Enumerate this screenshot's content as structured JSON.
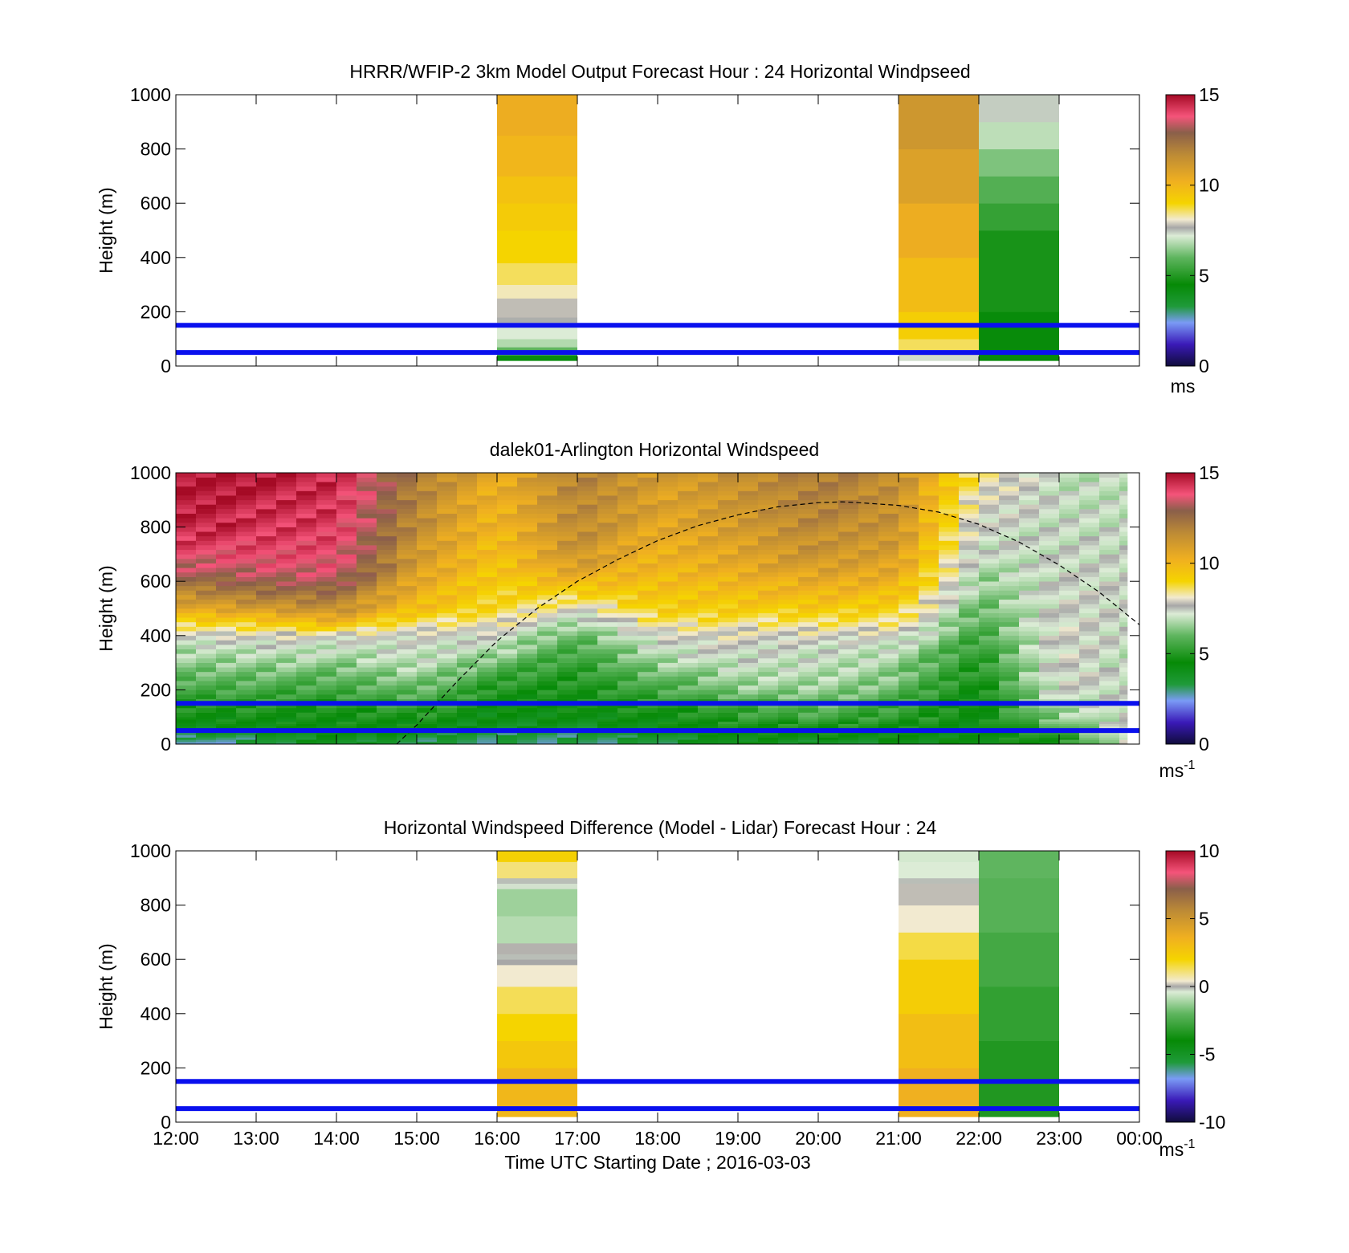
{
  "figure": {
    "xlabel": "Time UTC  Starting Date ; 2016-03-03",
    "x_ticks": [
      "12:00",
      "13:00",
      "14:00",
      "15:00",
      "16:00",
      "17:00",
      "18:00",
      "19:00",
      "20:00",
      "21:00",
      "22:00",
      "23:00",
      "00:00"
    ],
    "line_color": "#0a10ee"
  },
  "chart_data": [
    {
      "type": "heatmap",
      "title": "HRRR/WFIP-2 3km Model Output   Forecast Hour : 24 Horizontal Windpseed",
      "ylabel": "Height (m)",
      "xlim": [
        12,
        24
      ],
      "ylim": [
        0,
        1000
      ],
      "y_ticks": [
        "0",
        "200",
        "400",
        "600",
        "800",
        "1000"
      ],
      "colorbar": {
        "min": 0,
        "max": 15,
        "ticks": [
          "0",
          "5",
          "10",
          "15"
        ],
        "unit": "ms",
        "unit_sup": ""
      },
      "horizontal_lines_m": [
        50,
        150
      ],
      "columns": [
        {
          "t_start": 16,
          "t_end": 17,
          "profile": [
            {
              "z0": 20,
              "z1": 40,
              "v": 4.3
            },
            {
              "z0": 40,
              "z1": 70,
              "v": 6.0
            },
            {
              "z0": 70,
              "z1": 100,
              "v": 6.8
            },
            {
              "z0": 100,
              "z1": 160,
              "v": 7.2
            },
            {
              "z0": 160,
              "z1": 180,
              "v": 7.6
            },
            {
              "z0": 180,
              "z1": 250,
              "v": 7.8
            },
            {
              "z0": 250,
              "z1": 300,
              "v": 8.2
            },
            {
              "z0": 300,
              "z1": 380,
              "v": 8.6
            },
            {
              "z0": 380,
              "z1": 500,
              "v": 9.0
            },
            {
              "z0": 500,
              "z1": 600,
              "v": 9.3
            },
            {
              "z0": 600,
              "z1": 700,
              "v": 9.6
            },
            {
              "z0": 700,
              "z1": 850,
              "v": 10.0
            },
            {
              "z0": 850,
              "z1": 1000,
              "v": 10.3
            }
          ]
        },
        {
          "t_start": 21,
          "t_end": 22,
          "profile": [
            {
              "z0": 20,
              "z1": 40,
              "v": 7.3
            },
            {
              "z0": 40,
              "z1": 60,
              "v": 7.9
            },
            {
              "z0": 60,
              "z1": 100,
              "v": 8.6
            },
            {
              "z0": 100,
              "z1": 200,
              "v": 9.2
            },
            {
              "z0": 200,
              "z1": 400,
              "v": 9.8
            },
            {
              "z0": 400,
              "z1": 600,
              "v": 10.3
            },
            {
              "z0": 600,
              "z1": 800,
              "v": 10.8
            },
            {
              "z0": 800,
              "z1": 1000,
              "v": 11.2
            }
          ]
        },
        {
          "t_start": 22,
          "t_end": 23,
          "profile": [
            {
              "z0": 20,
              "z1": 200,
              "v": 4.4
            },
            {
              "z0": 200,
              "z1": 500,
              "v": 4.8
            },
            {
              "z0": 500,
              "z1": 600,
              "v": 5.3
            },
            {
              "z0": 600,
              "z1": 700,
              "v": 5.8
            },
            {
              "z0": 700,
              "z1": 800,
              "v": 6.3
            },
            {
              "z0": 800,
              "z1": 900,
              "v": 6.9
            },
            {
              "z0": 900,
              "z1": 1000,
              "v": 7.4
            }
          ]
        }
      ]
    },
    {
      "type": "heatmap",
      "title": "dalek01-Arlington  Horizontal Windspeed",
      "ylabel": "Height (m)",
      "xlim": [
        12,
        24
      ],
      "ylim": [
        0,
        1000
      ],
      "y_ticks": [
        "0",
        "200",
        "400",
        "600",
        "800",
        "1000"
      ],
      "colorbar": {
        "min": 0,
        "max": 15,
        "ticks": [
          "0",
          "5",
          "10",
          "15"
        ],
        "unit": "ms",
        "unit_sup": "-1"
      },
      "horizontal_lines_m": [
        50,
        150
      ],
      "time_step_h": 0.25,
      "data_end_h": 23.85,
      "height_levels_m": [
        0,
        25,
        50,
        75,
        100,
        150,
        200,
        250,
        300,
        350,
        400,
        450,
        500,
        550,
        600,
        650,
        700,
        750,
        800,
        850,
        900,
        950,
        1000
      ],
      "time_anchors_h": [
        12,
        13,
        14,
        15,
        16,
        17,
        18,
        19,
        20,
        21,
        22,
        23,
        24
      ],
      "speed_grid": [
        [
          2.0,
          3.2,
          3.8,
          3.2,
          3.2,
          3.0,
          3.2,
          4.3,
          3.2,
          4.0,
          4.3,
          4.5,
          7.8
        ],
        [
          3.0,
          3.5,
          4.2,
          3.5,
          3.2,
          3.2,
          3.5,
          4.3,
          4.3,
          4.3,
          4.3,
          5.0,
          7.8
        ],
        [
          4.0,
          4.0,
          4.3,
          4.3,
          3.5,
          3.5,
          4.3,
          4.5,
          4.5,
          4.5,
          4.4,
          5.5,
          7.7
        ],
        [
          4.3,
          4.4,
          4.5,
          4.5,
          4.0,
          4.0,
          4.3,
          4.8,
          5.0,
          4.8,
          4.4,
          6.0,
          7.6
        ],
        [
          4.5,
          4.6,
          4.6,
          4.8,
          4.2,
          4.3,
          4.5,
          5.2,
          5.5,
          5.2,
          4.4,
          6.5,
          7.5
        ],
        [
          5.0,
          5.0,
          5.0,
          5.5,
          4.5,
          4.6,
          5.0,
          5.5,
          6.0,
          5.5,
          4.4,
          7.0,
          7.4
        ],
        [
          5.5,
          5.6,
          5.6,
          6.0,
          5.0,
          4.8,
          5.5,
          6.5,
          6.5,
          6.0,
          4.5,
          7.3,
          7.4
        ],
        [
          6.0,
          6.0,
          6.0,
          6.5,
          5.5,
          5.0,
          6.0,
          6.8,
          6.8,
          6.3,
          4.8,
          7.5,
          7.2
        ],
        [
          6.5,
          6.5,
          6.5,
          7.0,
          6.0,
          5.3,
          6.5,
          7.2,
          7.0,
          6.6,
          5.0,
          7.6,
          7.0
        ],
        [
          6.8,
          7.0,
          7.0,
          7.2,
          6.8,
          5.6,
          7.0,
          7.5,
          7.2,
          6.9,
          5.2,
          7.6,
          7.0
        ],
        [
          7.6,
          7.8,
          7.8,
          7.6,
          7.4,
          6.0,
          7.6,
          7.8,
          7.8,
          7.5,
          5.5,
          7.7,
          7.0
        ],
        [
          9.0,
          9.2,
          10.0,
          8.5,
          8.2,
          6.8,
          8.5,
          8.5,
          8.6,
          8.4,
          5.8,
          7.6,
          7.1
        ],
        [
          10.5,
          11.0,
          11.5,
          9.8,
          8.8,
          7.8,
          9.2,
          9.2,
          9.4,
          9.0,
          6.0,
          7.5,
          7.2
        ],
        [
          11.5,
          12.2,
          12.3,
          10.2,
          9.0,
          9.0,
          9.5,
          9.6,
          10.0,
          9.6,
          6.3,
          7.5,
          7.3
        ],
        [
          12.5,
          13.0,
          13.2,
          10.6,
          9.2,
          10.0,
          9.8,
          10.0,
          10.5,
          10.2,
          6.5,
          7.4,
          7.3
        ],
        [
          13.2,
          13.6,
          13.6,
          11.0,
          9.5,
          10.8,
          10.0,
          10.4,
          11.0,
          10.6,
          6.8,
          7.4,
          7.2
        ],
        [
          13.8,
          14.0,
          13.8,
          11.2,
          9.6,
          11.2,
          10.2,
          10.6,
          11.3,
          10.9,
          7.0,
          7.3,
          7.2
        ],
        [
          14.2,
          14.2,
          14.0,
          11.4,
          9.8,
          11.5,
          10.4,
          10.8,
          11.5,
          11.2,
          7.2,
          7.3,
          7.1
        ],
        [
          14.5,
          14.4,
          14.2,
          11.5,
          10.0,
          11.6,
          10.6,
          11.0,
          11.7,
          11.4,
          7.4,
          7.2,
          7.1
        ],
        [
          14.6,
          14.5,
          14.3,
          11.7,
          10.1,
          11.7,
          10.7,
          11.2,
          11.8,
          11.5,
          7.6,
          7.2,
          7.0
        ],
        [
          14.7,
          14.6,
          14.4,
          11.8,
          10.2,
          11.8,
          10.8,
          11.3,
          11.9,
          11.5,
          7.8,
          7.1,
          7.0
        ],
        [
          14.8,
          14.7,
          14.5,
          11.9,
          10.3,
          11.9,
          10.9,
          11.4,
          12.0,
          11.6,
          8.2,
          7.1,
          7.0
        ],
        [
          14.8,
          14.7,
          14.5,
          12.0,
          10.4,
          12.0,
          11.0,
          11.5,
          12.0,
          11.6,
          8.5,
          7.0,
          7.0
        ]
      ],
      "dashed_curve": {
        "t_h": [
          14.75,
          15.0,
          15.5,
          16.0,
          16.5,
          17.0,
          17.5,
          18.0,
          18.5,
          19.0,
          19.5,
          20.0,
          20.3,
          20.5,
          21.0,
          21.5,
          22.0,
          22.5,
          23.0,
          23.5,
          24.0
        ],
        "z_m": [
          0,
          70,
          230,
          380,
          500,
          600,
          680,
          750,
          805,
          845,
          875,
          890,
          893,
          890,
          880,
          855,
          810,
          745,
          660,
          560,
          440
        ]
      }
    },
    {
      "type": "heatmap",
      "title": "Horizontal Windspeed Difference (Model - Lidar) Forecast Hour : 24",
      "ylabel": "Height (m)",
      "xlim": [
        12,
        24
      ],
      "ylim": [
        0,
        1000
      ],
      "y_ticks": [
        "0",
        "200",
        "400",
        "600",
        "800",
        "1000"
      ],
      "colorbar": {
        "min": -10,
        "max": 10,
        "ticks": [
          "-10",
          "-5",
          "0",
          "5",
          "10"
        ],
        "unit": "ms",
        "unit_sup": "-1"
      },
      "horizontal_lines_m": [
        50,
        150
      ],
      "columns": [
        {
          "t_start": 16,
          "t_end": 17,
          "profile": [
            {
              "z0": 20,
              "z1": 200,
              "v": 3.3
            },
            {
              "z0": 200,
              "z1": 300,
              "v": 2.6
            },
            {
              "z0": 300,
              "z1": 400,
              "v": 2.0
            },
            {
              "z0": 400,
              "z1": 500,
              "v": 1.5
            },
            {
              "z0": 500,
              "z1": 580,
              "v": 0.8
            },
            {
              "z0": 580,
              "z1": 600,
              "v": 0.2
            },
            {
              "z0": 600,
              "z1": 620,
              "v": 0.0
            },
            {
              "z0": 620,
              "z1": 660,
              "v": 0.3
            },
            {
              "z0": 660,
              "z1": 760,
              "v": -0.9
            },
            {
              "z0": 760,
              "z1": 860,
              "v": -1.2
            },
            {
              "z0": 860,
              "z1": 880,
              "v": -0.3
            },
            {
              "z0": 880,
              "z1": 900,
              "v": 0.0
            },
            {
              "z0": 900,
              "z1": 960,
              "v": 1.3
            },
            {
              "z0": 960,
              "z1": 1000,
              "v": 2.2
            }
          ]
        },
        {
          "t_start": 21,
          "t_end": 22,
          "profile": [
            {
              "z0": 20,
              "z1": 200,
              "v": 3.6
            },
            {
              "z0": 200,
              "z1": 400,
              "v": 3.0
            },
            {
              "z0": 400,
              "z1": 600,
              "v": 2.3
            },
            {
              "z0": 600,
              "z1": 700,
              "v": 1.6
            },
            {
              "z0": 700,
              "z1": 800,
              "v": 0.8
            },
            {
              "z0": 800,
              "z1": 880,
              "v": 0.4
            },
            {
              "z0": 880,
              "z1": 900,
              "v": 0.0
            },
            {
              "z0": 900,
              "z1": 960,
              "v": -0.4
            },
            {
              "z0": 960,
              "z1": 1000,
              "v": -0.5
            }
          ]
        },
        {
          "t_start": 22,
          "t_end": 23,
          "profile": [
            {
              "z0": 20,
              "z1": 300,
              "v": -3.4
            },
            {
              "z0": 300,
              "z1": 500,
              "v": -3.0
            },
            {
              "z0": 500,
              "z1": 700,
              "v": -2.6
            },
            {
              "z0": 700,
              "z1": 900,
              "v": -2.2
            },
            {
              "z0": 900,
              "z1": 1000,
              "v": -2.0
            }
          ]
        }
      ]
    }
  ]
}
